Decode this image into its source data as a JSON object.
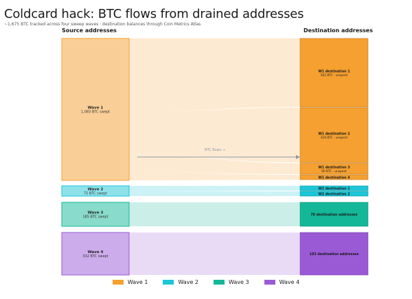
{
  "title": "Coldcard hack: BTC flows from drained addresses",
  "subtitle": "~1,675 BTC tracked across four sweep waves · destination balances through Coin Metrics Atlas",
  "source_header": "Source addresses",
  "destination_header": "Destination addresses",
  "flow_label": "BTC flows →",
  "colors": {
    "wave1": "#f5a030",
    "wave2": "#1cc6d6",
    "wave3": "#14b898",
    "wave4": "#9a5ad6"
  },
  "sources": [
    {
      "name": "Wave 1",
      "detail": "1,083 BTC swept",
      "btc": 1083,
      "color_key": "wave1"
    },
    {
      "name": "Wave 2",
      "detail": "75 BTC swept",
      "btc": 75,
      "color_key": "wave2"
    },
    {
      "name": "Wave 3",
      "detail": "185 BTC swept",
      "btc": 185,
      "color_key": "wave3"
    },
    {
      "name": "Wave 4",
      "detail": "332 BTC swept",
      "btc": 332,
      "color_key": "wave4"
    }
  ],
  "destinations": [
    {
      "name": "W1 destination 1",
      "detail": "562 BTC · unspent",
      "btc": 562,
      "color_key": "wave1"
    },
    {
      "name": "W1 destination 2",
      "detail": "319 BTC · unspent",
      "btc": 319,
      "color_key": "wave1"
    },
    {
      "name": "W1 destination 3",
      "detail": "90 BTC · unspent",
      "btc": 90,
      "color_key": "wave1"
    },
    {
      "name": "W1 destination 4",
      "detail": "",
      "btc": 40,
      "color_key": "wave1"
    },
    {
      "name": "W2 destination 1",
      "detail": "",
      "btc": 38,
      "color_key": "wave2"
    },
    {
      "name": "W2 destination 2",
      "detail": "",
      "btc": 37,
      "color_key": "wave2"
    },
    {
      "name": "78 destination addresses",
      "detail": "",
      "btc": 185,
      "color_key": "wave3"
    },
    {
      "name": "183 destination addresses",
      "detail": "",
      "btc": 332,
      "color_key": "wave4"
    }
  ],
  "legend": [
    {
      "label": "Wave 1",
      "color_key": "wave1"
    },
    {
      "label": "Wave 2",
      "color_key": "wave2"
    },
    {
      "label": "Wave 3",
      "color_key": "wave3"
    },
    {
      "label": "Wave 4",
      "color_key": "wave4"
    }
  ]
}
